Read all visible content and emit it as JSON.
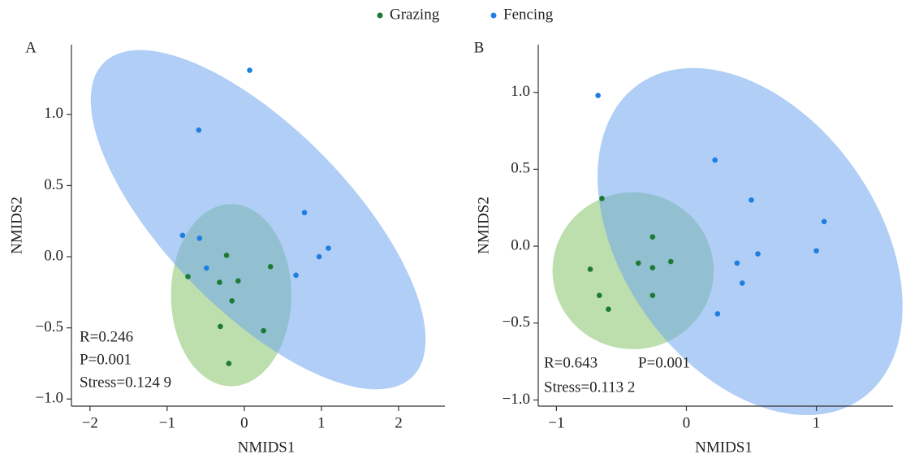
{
  "chart_data": [
    {
      "type": "scatter",
      "panel_label": "A",
      "x_label": "NMIDS1",
      "y_label": "NMIDS2",
      "xlim": [
        -2.24,
        2.6
      ],
      "ylim": [
        -1.05,
        1.49
      ],
      "xticks": [
        {
          "value": -2,
          "label": "−2"
        },
        {
          "value": -1,
          "label": "−1"
        },
        0,
        1,
        2
      ],
      "yticks": [
        {
          "value": -1,
          "label": "−1.0"
        },
        {
          "value": -0.5,
          "label": "−0.5"
        },
        {
          "value": 0,
          "label": "0.0"
        },
        0.5,
        {
          "value": 1,
          "label": "1.0"
        }
      ],
      "series": [
        {
          "name": "Grazing",
          "color": "#1d7a35",
          "ellipse_color": "#86c46a",
          "x": [
            -0.23,
            0.34,
            -0.73,
            -0.32,
            -0.08,
            -0.16,
            -0.31,
            0.25,
            -0.2
          ],
          "values": [
            0.01,
            -0.07,
            -0.14,
            -0.18,
            -0.17,
            -0.31,
            -0.49,
            -0.52,
            -0.75
          ],
          "ellipse": {
            "cx": -0.17,
            "cy": -0.27,
            "rx": 0.78,
            "ry": 0.64,
            "angle": 0
          }
        },
        {
          "name": "Fencing",
          "color": "#1f7fe0",
          "ellipse_color": "#6fa6ef",
          "x": [
            0.07,
            -0.59,
            0.78,
            -0.8,
            -0.58,
            1.09,
            0.97,
            -0.49,
            0.67
          ],
          "values": [
            1.31,
            0.89,
            0.31,
            0.15,
            0.13,
            0.06,
            0.0,
            -0.08,
            -0.13
          ],
          "ellipse": {
            "cx": 0.18,
            "cy": 0.26,
            "rx": 2.35,
            "ry": 0.78,
            "angle": -24
          }
        }
      ],
      "annotations": [
        "R=0.246",
        "P=0.001",
        "Stress=0.124 9"
      ]
    },
    {
      "type": "scatter",
      "panel_label": "B",
      "x_label": "NMIDS1",
      "y_label": "NMIDS2",
      "xlim": [
        -1.14,
        1.59
      ],
      "ylim": [
        -1.04,
        1.31
      ],
      "xticks": [
        {
          "value": -1,
          "label": "−1"
        },
        0,
        1
      ],
      "yticks": [
        {
          "value": -1,
          "label": "−1.0"
        },
        {
          "value": -0.5,
          "label": "−0.5"
        },
        {
          "value": 0,
          "label": "0.0"
        },
        0.5,
        {
          "value": 1,
          "label": "1.0"
        }
      ],
      "series": [
        {
          "name": "Grazing",
          "color": "#1d7a35",
          "ellipse_color": "#86c46a",
          "x": [
            -0.65,
            -0.26,
            -0.74,
            -0.37,
            -0.12,
            -0.26,
            -0.26,
            -0.67,
            -0.6
          ],
          "values": [
            0.31,
            0.06,
            -0.15,
            -0.11,
            -0.1,
            -0.14,
            -0.32,
            -0.32,
            -0.41
          ],
          "ellipse": {
            "cx": -0.41,
            "cy": -0.16,
            "rx": 0.62,
            "ry": 0.51,
            "angle": 0
          }
        },
        {
          "name": "Fencing",
          "color": "#1f7fe0",
          "ellipse_color": "#6fa6ef",
          "x": [
            -0.68,
            0.22,
            0.5,
            1.06,
            0.39,
            0.55,
            1.0,
            0.43,
            0.24
          ],
          "values": [
            0.98,
            0.56,
            0.3,
            0.16,
            -0.11,
            -0.05,
            -0.03,
            -0.24,
            -0.44
          ],
          "ellipse": {
            "cx": 0.49,
            "cy": 0.03,
            "rx": 1.35,
            "ry": 0.91,
            "angle": -42
          }
        }
      ],
      "annotations": [
        "R=0.643",
        "P=0.001",
        "Stress=0.113 2"
      ]
    }
  ]
}
